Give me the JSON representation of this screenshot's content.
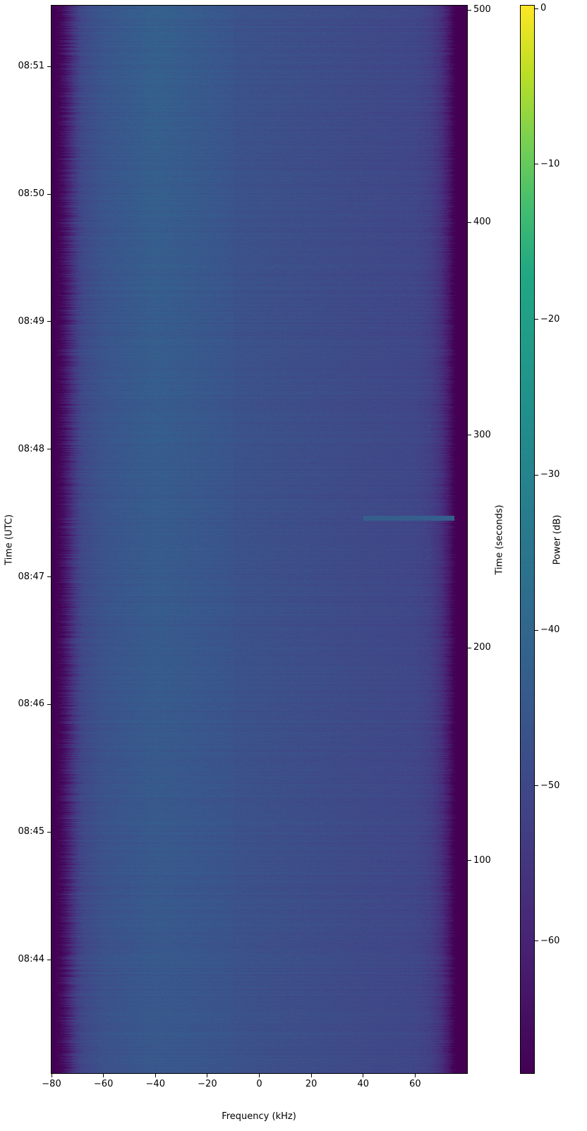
{
  "chart_data": {
    "type": "heatmap",
    "subtype": "spectrogram",
    "xlabel": "Frequency (kHz)",
    "ylabel_left": "Time (UTC)",
    "ylabel_right": "Time (seconds)",
    "colorbar_label": "Power (dB)",
    "colormap": "viridis",
    "xlim": [
      -80,
      80
    ],
    "x_ticks": [
      -80,
      -60,
      -40,
      -20,
      0,
      20,
      40,
      60
    ],
    "x_tick_labels": [
      "−80",
      "−60",
      "−40",
      "−20",
      "0",
      "20",
      "40",
      "60"
    ],
    "ylim_seconds": [
      0,
      502
    ],
    "right_y_ticks": [
      100,
      200,
      300,
      400,
      500
    ],
    "right_y_tick_labels": [
      "100",
      "200",
      "300",
      "400",
      "500"
    ],
    "left_y_tick_seconds": [
      53.4,
      113.4,
      173.4,
      233.4,
      293.4,
      353.4,
      413.4,
      473.4
    ],
    "left_y_tick_labels": [
      "08:44",
      "08:45",
      "08:46",
      "08:47",
      "08:48",
      "08:49",
      "08:50",
      "08:51"
    ],
    "clim_db": [
      -68.5,
      0.2
    ],
    "colorbar_ticks": [
      0,
      -10,
      -20,
      -30,
      -40,
      -50,
      -60
    ],
    "colorbar_tick_labels": [
      "0",
      "−10",
      "−20",
      "−30",
      "−40",
      "−50",
      "−60"
    ],
    "mean_power_profile": {
      "freq_khz": [
        -80,
        -77,
        -74,
        -71,
        -68,
        -60,
        -50,
        -40,
        -20,
        0,
        20,
        40,
        60,
        66,
        70,
        73,
        75,
        80
      ],
      "power_db": [
        -68.5,
        -68,
        -62,
        -54,
        -50,
        -47,
        -46,
        -45,
        -46,
        -47,
        -48,
        -49,
        -50,
        -52,
        -56,
        -63,
        -68.5,
        -68.5
      ]
    },
    "narrowband_event": {
      "time_s": 261,
      "freq_khz": [
        40,
        75
      ],
      "power_db": -43
    }
  }
}
